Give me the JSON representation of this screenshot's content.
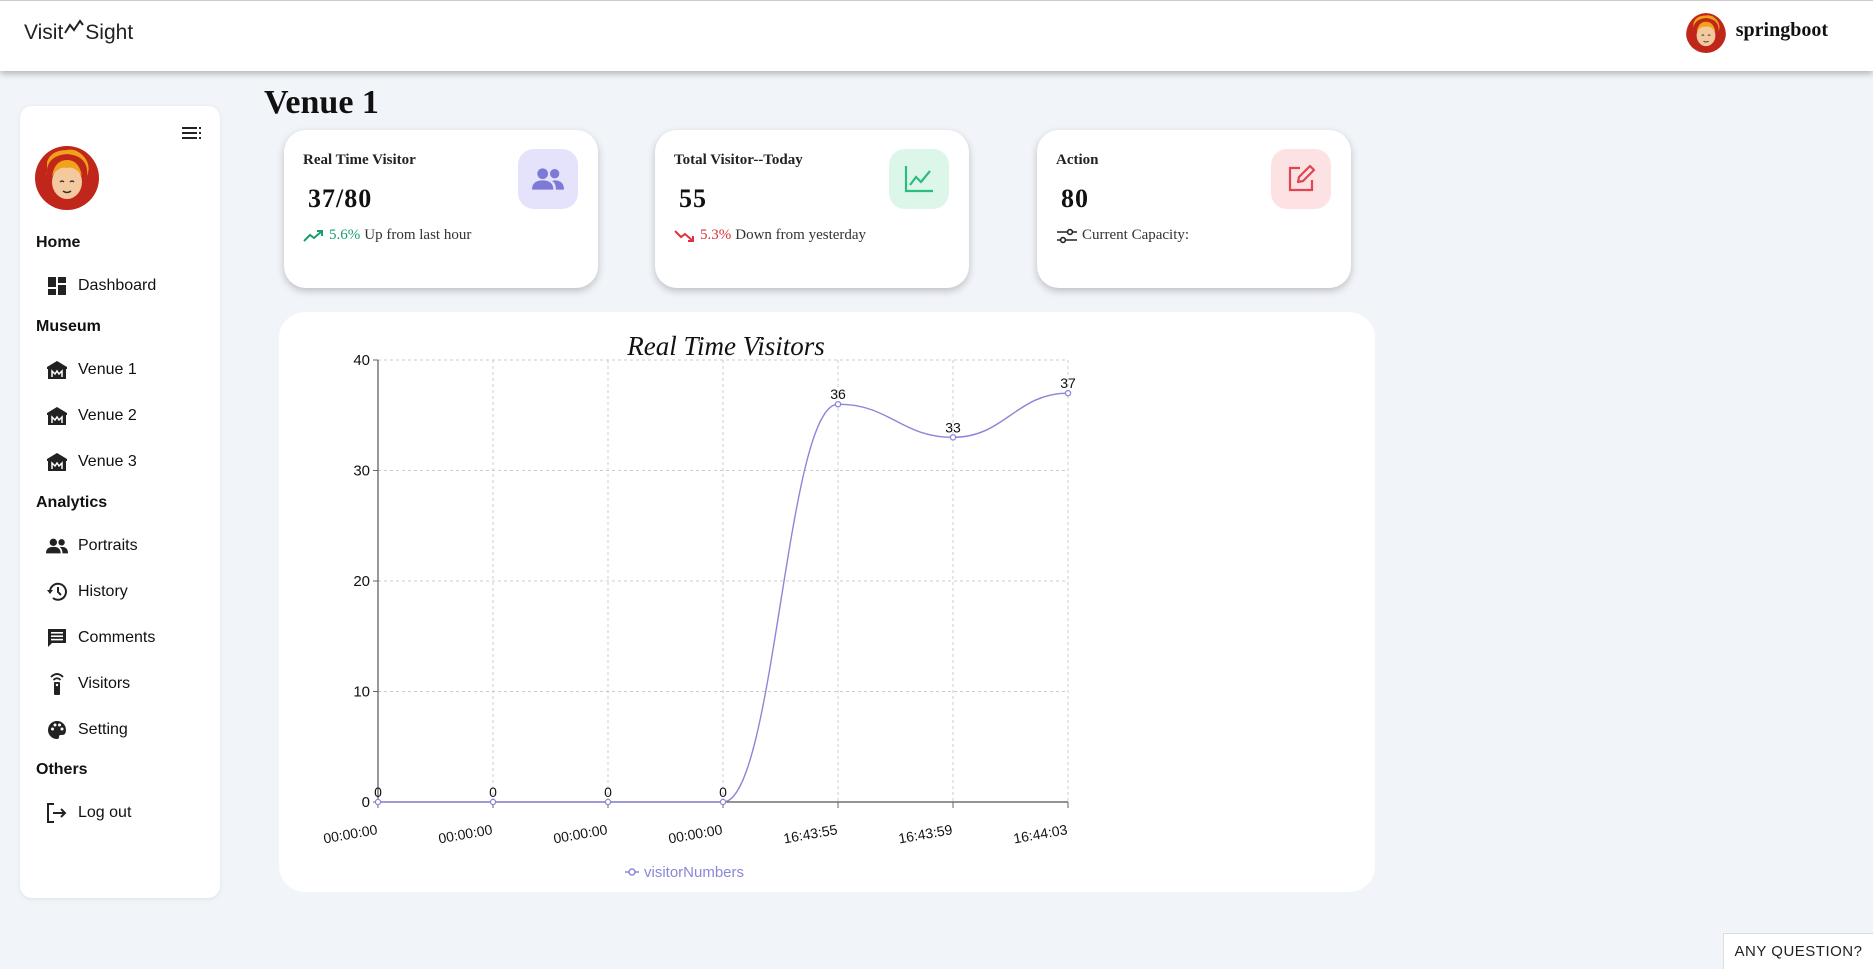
{
  "header": {
    "logo_left": "Visit",
    "logo_right": "Sight",
    "username": "springboot"
  },
  "sidebar": {
    "sections": [
      {
        "title": "Home",
        "items": [
          {
            "label": "Dashboard",
            "icon": "dashboard-icon"
          }
        ]
      },
      {
        "title": "Museum",
        "items": [
          {
            "label": "Venue 1",
            "icon": "museum-icon"
          },
          {
            "label": "Venue 2",
            "icon": "museum-icon"
          },
          {
            "label": "Venue 3",
            "icon": "museum-icon"
          }
        ]
      },
      {
        "title": "Analytics",
        "items": [
          {
            "label": "Portraits",
            "icon": "people-icon"
          },
          {
            "label": "History",
            "icon": "history-icon"
          },
          {
            "label": "Comments",
            "icon": "comment-icon"
          },
          {
            "label": "Visitors",
            "icon": "visitor-signal-icon"
          },
          {
            "label": "Setting",
            "icon": "palette-icon"
          }
        ]
      },
      {
        "title": "Others",
        "items": [
          {
            "label": "Log out",
            "icon": "logout-icon"
          }
        ]
      }
    ]
  },
  "page": {
    "title": "Venue 1"
  },
  "cards": {
    "realtime": {
      "title": "Real Time Visitor",
      "value": "37/80",
      "pct": "5.6%",
      "text": "Up from last hour",
      "color": "#1a9e6a"
    },
    "total": {
      "title": "Total Visitor--Today",
      "value": "55",
      "pct": "5.3%",
      "text": "Down from yesterday",
      "color": "#e0323a"
    },
    "action": {
      "title": "Action",
      "value": "80",
      "text": "Current Capacity:"
    }
  },
  "colors": {
    "accent": "#8b87d8",
    "green": "#2dbb7f",
    "red": "#e04552"
  },
  "chart_data": {
    "type": "line",
    "title": "Real Time Visitors",
    "categories": [
      "00:00:00",
      "00:00:00",
      "00:00:00",
      "00:00:00",
      "16:43:55",
      "16:43:59",
      "16:44:03"
    ],
    "series": [
      {
        "name": "visitorNumbers",
        "values": [
          0,
          0,
          0,
          0,
          36,
          33,
          37
        ]
      }
    ],
    "ylim": [
      0,
      40
    ],
    "yticks": [
      0,
      10,
      20,
      30,
      40
    ],
    "grid": true,
    "legend": "bottom"
  },
  "help": {
    "label": "ANY QUESTION?"
  }
}
